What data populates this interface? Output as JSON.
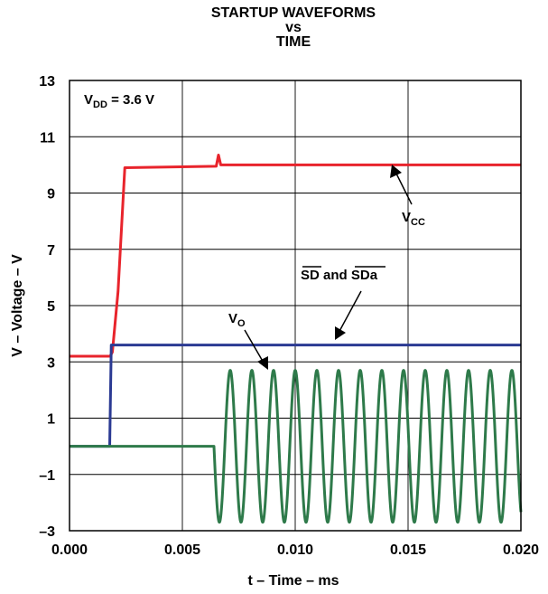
{
  "chart_data": {
    "type": "line",
    "title": [
      "STARTUP WAVEFORMS",
      "vs",
      "TIME"
    ],
    "xlabel": "t – Time – ms",
    "ylabel": "V – Voltage – V",
    "xlim": [
      0.0,
      0.02
    ],
    "ylim": [
      -3,
      13
    ],
    "x_ticks": [
      "0.000",
      "0.005",
      "0.010",
      "0.015",
      "0.020"
    ],
    "y_ticks": [
      "13",
      "11",
      "9",
      "7",
      "5",
      "3",
      "1",
      "–1",
      "–3"
    ],
    "grid": true,
    "annotations": {
      "vdd": {
        "main": "V",
        "sub": "DD",
        "rest": " = 3.6 V"
      },
      "vcc": {
        "main": "V",
        "sub": "CC"
      },
      "vo": {
        "main": "V",
        "sub": "O"
      },
      "sd": {
        "a": "SD",
        "mid": " and ",
        "b": "SDa"
      }
    },
    "series": [
      {
        "color": "#e8242c",
        "points": [
          [
            0.0,
            3.2
          ],
          [
            0.0018,
            3.2
          ],
          [
            0.0019,
            3.35
          ],
          [
            0.00215,
            5.5
          ],
          [
            0.00245,
            9.9
          ],
          [
            0.0065,
            9.95
          ],
          [
            0.0066,
            10.35
          ],
          [
            0.0067,
            10.0
          ],
          [
            0.02,
            10.0
          ]
        ]
      },
      {
        "color": "#2b3a93",
        "points": [
          [
            0.0,
            0.0
          ],
          [
            0.00178,
            0.0
          ],
          [
            0.00185,
            3.6
          ],
          [
            0.02,
            3.6
          ]
        ]
      },
      {
        "color": "#2e7a4a",
        "points": [
          [
            0.0,
            0.0
          ],
          [
            0.0064,
            0.0
          ]
        ],
        "sine": {
          "x_start": 0.0064,
          "x_end": 0.02,
          "amplitude": 2.7,
          "offset": 0.0,
          "period": 0.00096
        }
      }
    ]
  }
}
